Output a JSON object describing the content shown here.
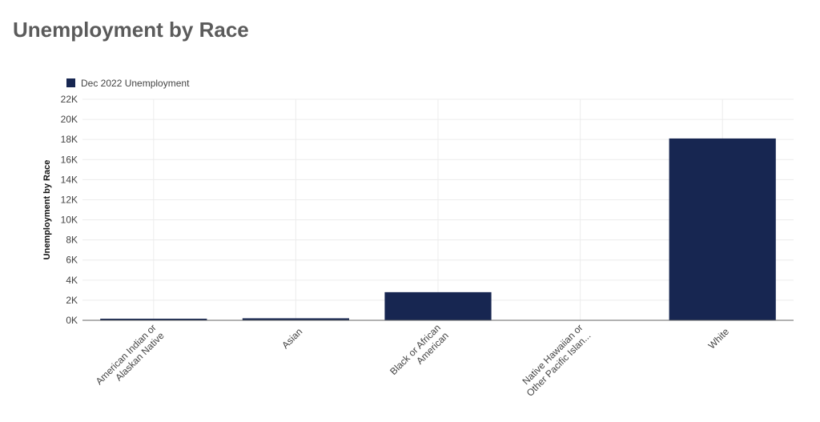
{
  "page": {
    "title": "Unemployment by Race"
  },
  "colors": {
    "bar": "#172651",
    "grid": "#ececec",
    "axis": "#666666",
    "text": "#444444"
  },
  "chart_data": {
    "type": "bar",
    "title": "",
    "xlabel": "",
    "ylabel": "Unemployment by Race",
    "legend_position": "top-left",
    "grid": true,
    "ylim": [
      0,
      22000
    ],
    "y_ticks": [
      0,
      2000,
      4000,
      6000,
      8000,
      10000,
      12000,
      14000,
      16000,
      18000,
      20000,
      22000
    ],
    "y_tick_labels": [
      "0K",
      "2K",
      "4K",
      "6K",
      "8K",
      "10K",
      "12K",
      "14K",
      "16K",
      "18K",
      "20K",
      "22K"
    ],
    "categories": [
      "American Indian or Alaskan Native",
      "Asian",
      "Black or African American",
      "Native Hawaiian or Other Pacific Islan...",
      "White"
    ],
    "category_label_lines": [
      [
        "American Indian or",
        "Alaskan Native"
      ],
      [
        "Asian"
      ],
      [
        "Black or African",
        "American"
      ],
      [
        "Native Hawaiian or",
        "Other Pacific Islan..."
      ],
      [
        "White"
      ]
    ],
    "series": [
      {
        "name": "Dec 2022 Unemployment",
        "values": [
          100,
          200,
          2800,
          0,
          18100
        ]
      }
    ]
  }
}
